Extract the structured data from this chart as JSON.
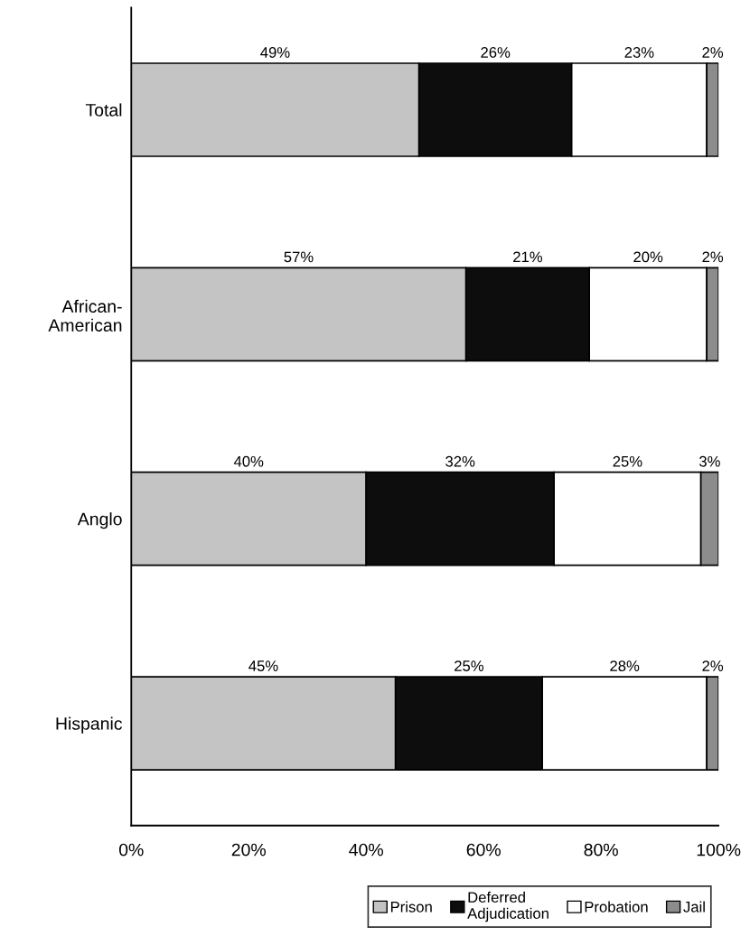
{
  "chart_data": {
    "type": "bar",
    "orientation": "horizontal",
    "stacked": true,
    "categories": [
      "Total",
      "African-\nAmerican",
      "Anglo",
      "Hispanic"
    ],
    "series": [
      {
        "name": "Prison",
        "color": "#c4c4c4",
        "values": [
          49,
          57,
          40,
          45
        ],
        "value_labels": [
          "49%",
          "57%",
          "40%",
          "45%"
        ]
      },
      {
        "name": "Deferred\nAdjudication",
        "color": "#0d0d0d",
        "values": [
          26,
          21,
          32,
          25
        ],
        "value_labels": [
          "26%",
          "21%",
          "32%",
          "25%"
        ]
      },
      {
        "name": "Probation",
        "color": "#ffffff",
        "values": [
          23,
          20,
          25,
          28
        ],
        "value_labels": [
          "23%",
          "20%",
          "25%",
          "28%"
        ]
      },
      {
        "name": "Jail",
        "color": "#8c8c8c",
        "values": [
          2,
          2,
          3,
          2
        ],
        "value_labels": [
          "2%",
          "2%",
          "3%",
          "2%"
        ]
      }
    ],
    "xlim": [
      0,
      100
    ],
    "xticks": [
      {
        "value": 0,
        "label": "0%"
      },
      {
        "value": 20,
        "label": "20%"
      },
      {
        "value": 40,
        "label": "40%"
      },
      {
        "value": 60,
        "label": "60%"
      },
      {
        "value": 80,
        "label": "80%"
      },
      {
        "value": 100,
        "label": "100%"
      }
    ],
    "grid": false,
    "legend": "bottom right"
  }
}
